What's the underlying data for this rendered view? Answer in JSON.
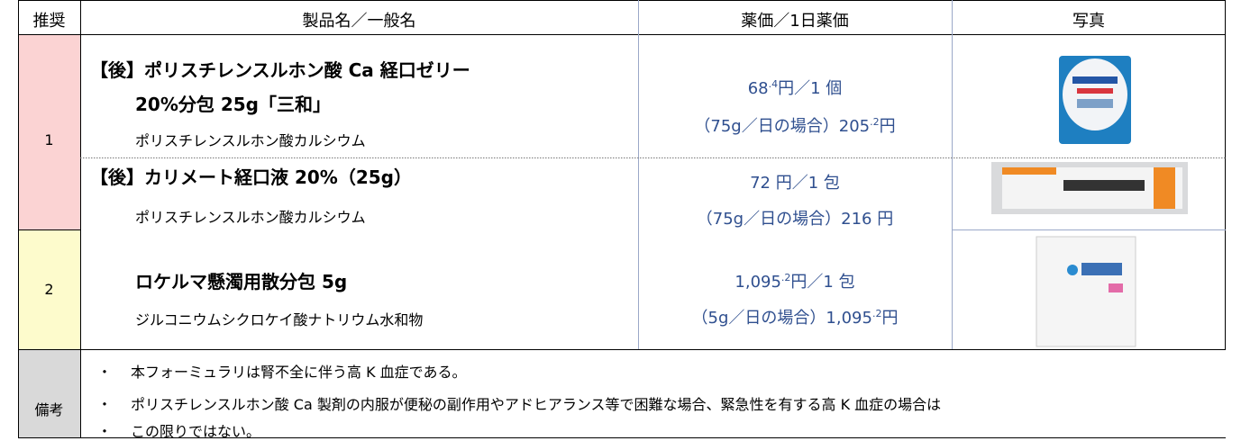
{
  "header": {
    "rank": "推奨",
    "product": "製品名／一般名",
    "price": "薬価／1日薬価",
    "photo": "写真"
  },
  "groups": [
    {
      "rank": "1",
      "drugs": [
        {
          "name_lines": [
            "【後】ポリスチレンスルホン酸 Ca 経口ゼリー",
            "20%分包 25g「三和」"
          ],
          "generic": "ポリスチレンスルホン酸カルシウム",
          "price_lines": [
            {
              "before": "68",
              "sup": ".4",
              "after": "円／1 個"
            },
            {
              "before": "（75g／日の場合）205",
              "sup": ".2",
              "after": "円"
            }
          ]
        },
        {
          "name_lines": [
            "【後】カリメート経口液 20%（25g）"
          ],
          "generic": "ポリスチレンスルホン酸カルシウム",
          "price_lines": [
            {
              "before": "72 円／1 包"
            },
            {
              "before": "（75g／日の場合）216 円"
            }
          ]
        }
      ]
    },
    {
      "rank": "2",
      "drugs": [
        {
          "name_lines": [
            "ロケルマ懸濁用散分包 5g"
          ],
          "generic": "ジルコニウムシクロケイ酸ナトリウム水和物",
          "price_lines": [
            {
              "before": "1,095",
              "sup": ".2",
              "after": "円／1 包"
            },
            {
              "before": "（5g／日の場合）1,095",
              "sup": ".2",
              "after": "円"
            }
          ]
        }
      ]
    }
  ],
  "notes": {
    "label": "備考",
    "bullet": "・",
    "items": [
      "本フォーミュラリは腎不全に伴う高 K 血症である。",
      "ポリスチレンスルホン酸 Ca 製剤の内服が便秘の副作用やアドヒアランス等で困難な場合、緊急性を有する高 K 血症の場合は",
      "この限りではない。"
    ]
  }
}
